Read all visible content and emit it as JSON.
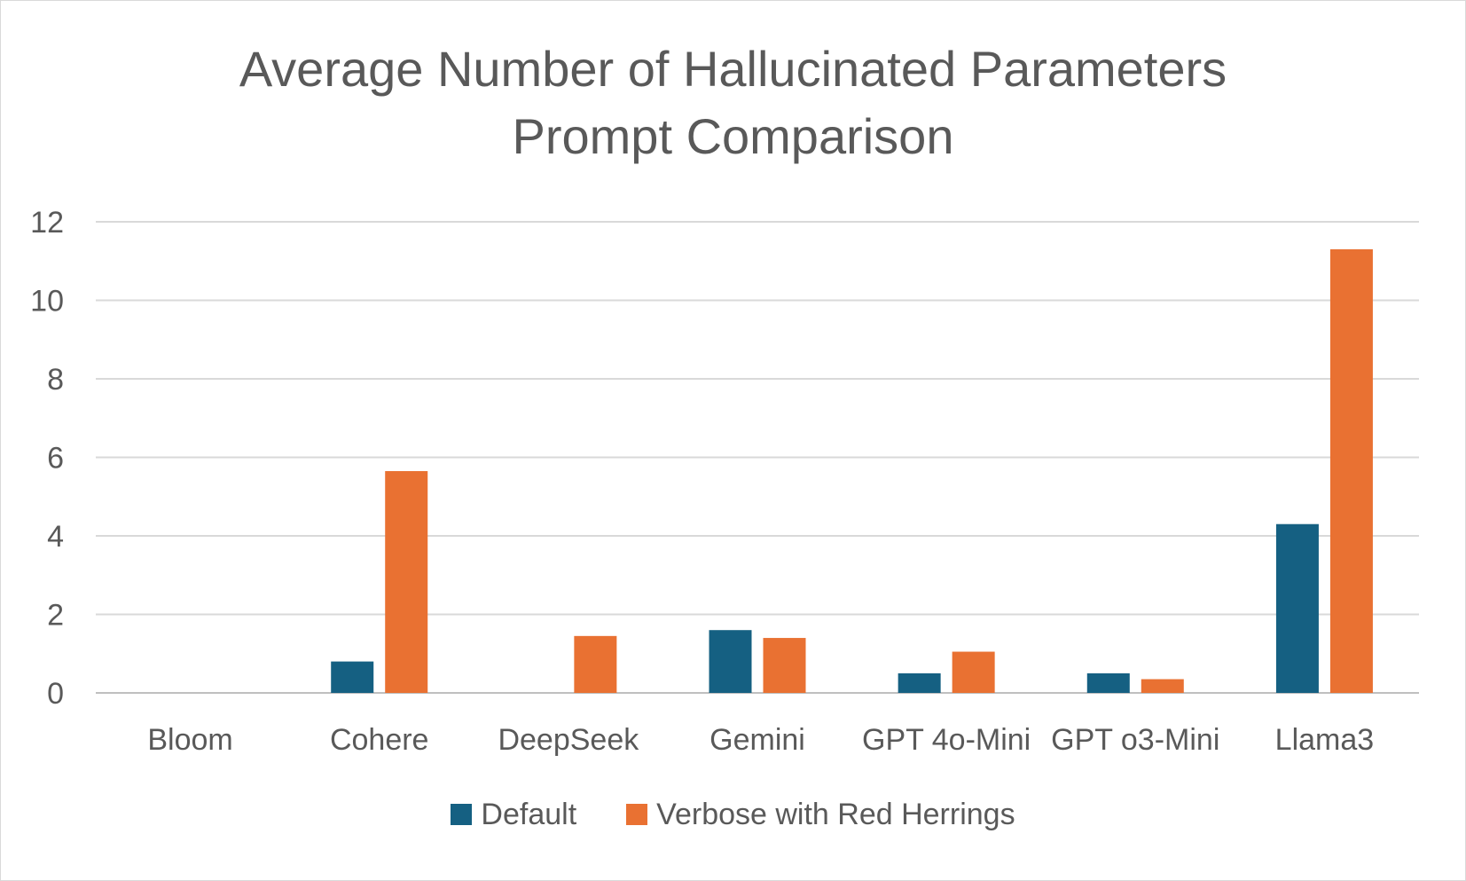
{
  "chart_data": {
    "type": "bar",
    "title_lines": [
      "Average Number of Hallucinated Parameters",
      "Prompt Comparison"
    ],
    "categories": [
      "Bloom",
      "Cohere",
      "DeepSeek",
      "Gemini",
      "GPT 4o-Mini",
      "GPT o3-Mini",
      "Llama3"
    ],
    "series": [
      {
        "name": "Default",
        "color": "#156082",
        "values": [
          0,
          0.8,
          0,
          1.6,
          0.5,
          0.5,
          4.3
        ]
      },
      {
        "name": "Verbose with Red Herrings",
        "color": "#E97132",
        "values": [
          0,
          5.65,
          1.45,
          1.4,
          1.05,
          0.35,
          11.3
        ]
      }
    ],
    "yticks": [
      "0",
      "2",
      "4",
      "6",
      "8",
      "10",
      "12"
    ],
    "ylim": [
      0,
      12
    ],
    "grid": true,
    "legend_position": "bottom"
  }
}
